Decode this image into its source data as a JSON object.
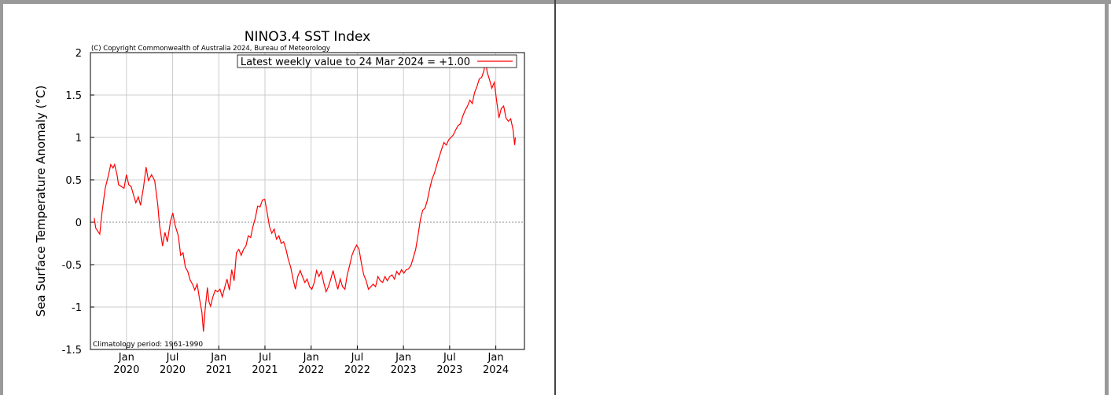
{
  "chart_data": {
    "type": "line",
    "title": "NINO3.4 SST Index",
    "subtitle": "(C) Copyright Commonwealth of Australia 2024, Bureau of Meteorology",
    "ylabel": "Sea Surface Temperature Anomaly (°C)",
    "annotation": "Climatology period: 1961-1990",
    "legend": "upper right",
    "grid": true,
    "ylim": [
      -1.5,
      2
    ],
    "yticks": [
      -1.5,
      -1,
      -0.5,
      0,
      0.5,
      1,
      1.5,
      2
    ],
    "xlim": [
      2019.61,
      2024.31
    ],
    "xticks": [
      {
        "value": 2020,
        "label": "Jan\n2020"
      },
      {
        "value": 2020.5,
        "label": "Jul\n2020"
      },
      {
        "value": 2021,
        "label": "Jan\n2021"
      },
      {
        "value": 2021.5,
        "label": "Jul\n2021"
      },
      {
        "value": 2022,
        "label": "Jan\n2022"
      },
      {
        "value": 2022.5,
        "label": "Jul\n2022"
      },
      {
        "value": 2023,
        "label": "Jan\n2023"
      },
      {
        "value": 2023.5,
        "label": "Jul\n2023"
      },
      {
        "value": 2024,
        "label": "Jan\n2024"
      }
    ],
    "x": [
      2019.651,
      2019.668,
      2019.711,
      2019.736,
      2019.77,
      2019.804,
      2019.83,
      2019.855,
      2019.872,
      2019.898,
      2019.915,
      2019.949,
      2019.974,
      2020.0,
      2020.026,
      2020.051,
      2020.077,
      2020.102,
      2020.128,
      2020.153,
      2020.187,
      2020.213,
      2020.238,
      2020.272,
      2020.306,
      2020.34,
      2020.357,
      2020.391,
      2020.417,
      2020.443,
      2020.477,
      2020.502,
      2020.528,
      2020.562,
      2020.587,
      2020.613,
      2020.638,
      2020.664,
      2020.689,
      2020.715,
      2020.74,
      2020.766,
      2020.791,
      2020.817,
      2020.834,
      2020.851,
      2020.877,
      2020.894,
      2020.911,
      2020.936,
      2020.962,
      2020.987,
      2021.013,
      2021.038,
      2021.064,
      2021.089,
      2021.115,
      2021.14,
      2021.166,
      2021.191,
      2021.217,
      2021.243,
      2021.268,
      2021.294,
      2021.319,
      2021.345,
      2021.37,
      2021.396,
      2021.421,
      2021.447,
      2021.472,
      2021.498,
      2021.523,
      2021.549,
      2021.574,
      2021.6,
      2021.625,
      2021.651,
      2021.676,
      2021.702,
      2021.728,
      2021.753,
      2021.779,
      2021.804,
      2021.83,
      2021.855,
      2021.881,
      2021.906,
      2021.932,
      2021.957,
      2021.983,
      2022.008,
      2022.034,
      2022.059,
      2022.085,
      2022.11,
      2022.136,
      2022.162,
      2022.187,
      2022.213,
      2022.238,
      2022.264,
      2022.289,
      2022.315,
      2022.34,
      2022.366,
      2022.391,
      2022.417,
      2022.442,
      2022.468,
      2022.493,
      2022.519,
      2022.544,
      2022.57,
      2022.596,
      2022.621,
      2022.647,
      2022.672,
      2022.698,
      2022.723,
      2022.749,
      2022.774,
      2022.8,
      2022.825,
      2022.851,
      2022.876,
      2022.902,
      2022.927,
      2022.953,
      2022.979,
      2023.004,
      2023.03,
      2023.055,
      2023.081,
      2023.106,
      2023.132,
      2023.157,
      2023.183,
      2023.208,
      2023.234,
      2023.259,
      2023.285,
      2023.31,
      2023.336,
      2023.362,
      2023.387,
      2023.413,
      2023.438,
      2023.464,
      2023.489,
      2023.515,
      2023.54,
      2023.566,
      2023.591,
      2023.617,
      2023.642,
      2023.668,
      2023.694,
      2023.719,
      2023.745,
      2023.77,
      2023.796,
      2023.821,
      2023.847,
      2023.872,
      2023.889,
      2023.906,
      2023.932,
      2023.957,
      2023.983,
      2024.008,
      2024.034,
      2024.059,
      2024.085,
      2024.11,
      2024.136,
      2024.161,
      2024.187,
      2024.204,
      2024.212
    ],
    "series": [
      {
        "name": "Latest weekly value to 24 Mar 2024 = +1.00",
        "color": "#ff0000",
        "values": [
          0.05,
          -0.07,
          -0.14,
          0.12,
          0.4,
          0.55,
          0.68,
          0.64,
          0.68,
          0.56,
          0.44,
          0.42,
          0.4,
          0.56,
          0.44,
          0.42,
          0.32,
          0.23,
          0.3,
          0.2,
          0.43,
          0.65,
          0.49,
          0.56,
          0.49,
          0.2,
          -0.02,
          -0.28,
          -0.12,
          -0.23,
          0.01,
          0.11,
          -0.04,
          -0.16,
          -0.39,
          -0.36,
          -0.53,
          -0.58,
          -0.68,
          -0.73,
          -0.8,
          -0.73,
          -0.9,
          -1.06,
          -1.29,
          -1.04,
          -0.77,
          -0.94,
          -0.99,
          -0.88,
          -0.8,
          -0.82,
          -0.79,
          -0.88,
          -0.77,
          -0.67,
          -0.8,
          -0.56,
          -0.69,
          -0.36,
          -0.32,
          -0.39,
          -0.32,
          -0.28,
          -0.16,
          -0.18,
          -0.05,
          0.05,
          0.19,
          0.18,
          0.26,
          0.27,
          0.12,
          -0.05,
          -0.13,
          -0.08,
          -0.2,
          -0.16,
          -0.25,
          -0.23,
          -0.32,
          -0.44,
          -0.53,
          -0.67,
          -0.79,
          -0.64,
          -0.57,
          -0.64,
          -0.71,
          -0.67,
          -0.76,
          -0.79,
          -0.71,
          -0.57,
          -0.64,
          -0.58,
          -0.71,
          -0.82,
          -0.76,
          -0.67,
          -0.57,
          -0.69,
          -0.79,
          -0.67,
          -0.76,
          -0.79,
          -0.62,
          -0.51,
          -0.39,
          -0.32,
          -0.27,
          -0.32,
          -0.48,
          -0.62,
          -0.69,
          -0.79,
          -0.76,
          -0.73,
          -0.76,
          -0.64,
          -0.69,
          -0.71,
          -0.64,
          -0.69,
          -0.64,
          -0.62,
          -0.67,
          -0.58,
          -0.62,
          -0.56,
          -0.6,
          -0.56,
          -0.55,
          -0.51,
          -0.42,
          -0.32,
          -0.16,
          0.03,
          0.14,
          0.17,
          0.26,
          0.4,
          0.51,
          0.58,
          0.68,
          0.77,
          0.86,
          0.94,
          0.91,
          0.97,
          1.0,
          1.03,
          1.09,
          1.14,
          1.16,
          1.25,
          1.32,
          1.37,
          1.44,
          1.4,
          1.53,
          1.6,
          1.69,
          1.71,
          1.79,
          1.93,
          1.77,
          1.68,
          1.58,
          1.65,
          1.44,
          1.23,
          1.34,
          1.37,
          1.23,
          1.19,
          1.22,
          1.09,
          0.91,
          1.0
        ]
      }
    ]
  }
}
